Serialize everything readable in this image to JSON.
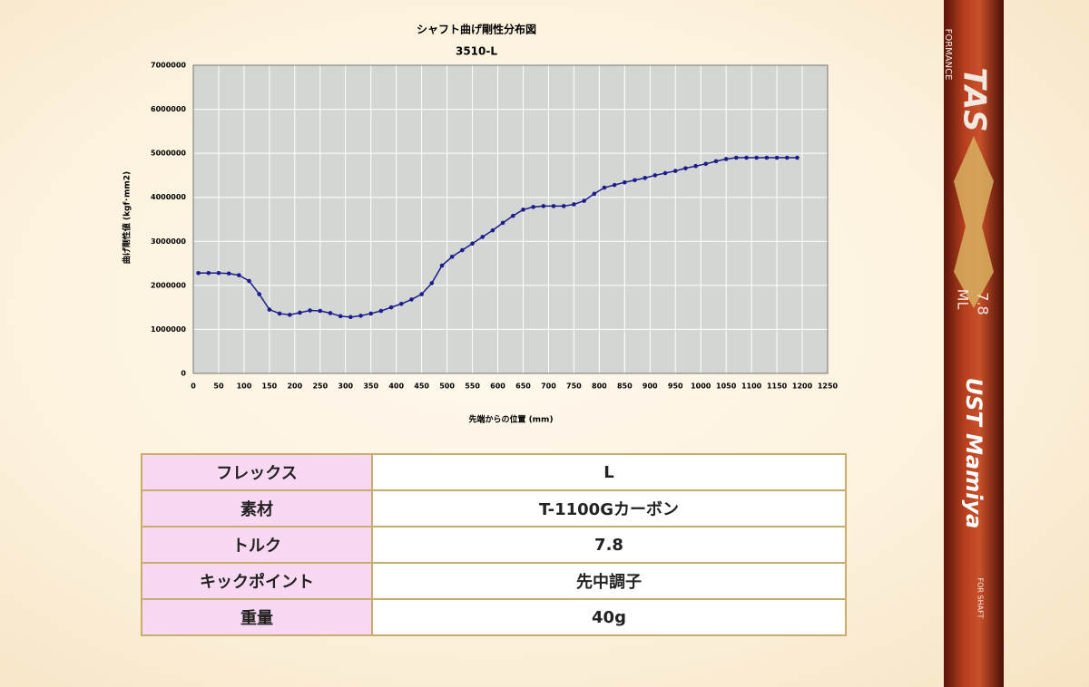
{
  "chart_data": {
    "type": "line",
    "title": "シャフト曲げ剛性分布図",
    "subtitle": "3510-L",
    "x_label": "先端からの位置 (mm)",
    "y_label": "曲げ剛性値 (kgf･mm2)",
    "x": [
      10,
      30,
      50,
      70,
      90,
      110,
      130,
      150,
      170,
      190,
      210,
      230,
      250,
      270,
      290,
      310,
      330,
      350,
      370,
      390,
      410,
      430,
      450,
      470,
      490,
      510,
      530,
      550,
      570,
      590,
      610,
      630,
      650,
      670,
      690,
      710,
      730,
      750,
      770,
      790,
      810,
      830,
      850,
      870,
      890,
      910,
      930,
      950,
      970,
      990,
      1010,
      1030,
      1050,
      1070,
      1090,
      1110,
      1130,
      1150,
      1170,
      1190
    ],
    "series": [
      {
        "color": "#1c1c8e",
        "values": [
          2280000,
          2280000,
          2280000,
          2270000,
          2230000,
          2100000,
          1800000,
          1450000,
          1360000,
          1330000,
          1380000,
          1430000,
          1420000,
          1370000,
          1300000,
          1280000,
          1310000,
          1360000,
          1420000,
          1500000,
          1580000,
          1680000,
          1800000,
          2050000,
          2450000,
          2650000,
          2800000,
          2950000,
          3100000,
          3250000,
          3420000,
          3580000,
          3720000,
          3780000,
          3800000,
          3800000,
          3800000,
          3840000,
          3920000,
          4080000,
          4220000,
          4280000,
          4340000,
          4390000,
          4440000,
          4500000,
          4550000,
          4600000,
          4660000,
          4710000,
          4760000,
          4820000,
          4870000,
          4900000,
          4900000,
          4900000,
          4900000,
          4900000,
          4900000,
          4900000
        ]
      }
    ],
    "xlim": [
      0,
      1250
    ],
    "xticks": [
      0,
      50,
      100,
      150,
      200,
      250,
      300,
      350,
      400,
      450,
      500,
      550,
      600,
      650,
      700,
      750,
      800,
      850,
      900,
      950,
      1000,
      1050,
      1100,
      1150,
      1200,
      1250
    ],
    "ylim": [
      0,
      7000000
    ],
    "yticks": [
      0,
      1000000,
      2000000,
      3000000,
      4000000,
      5000000,
      6000000,
      7000000
    ],
    "grid": true
  },
  "table": {
    "rows": [
      [
        "フレックス",
        "L"
      ],
      [
        "素材",
        "T-1100Gカーボン"
      ],
      [
        "トルク",
        "7.8"
      ],
      [
        "キックポイント",
        "先中調子"
      ],
      [
        "重量",
        "40g"
      ]
    ]
  },
  "shaft": {
    "brand_top": "TAS",
    "brand_sub": "FORMANCE",
    "model": "ML",
    "code": "7.8",
    "maker": "UST Mamiya",
    "badge": "FOR SHAFT"
  }
}
